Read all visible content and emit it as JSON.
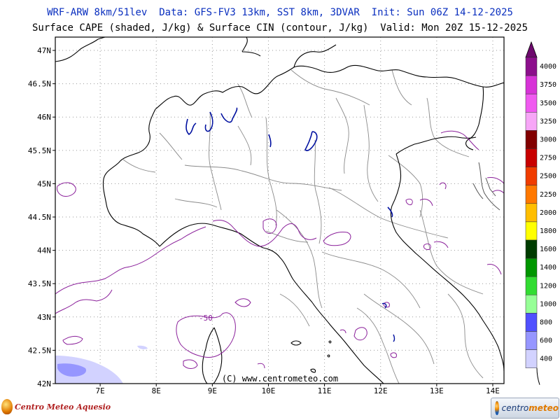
{
  "header": {
    "line1": "WRF-ARW 8km/51lev  Data: GFS-FV3 13km, SST 8km, 3DVAR  Init: Sun 06Z 14-12-2025",
    "line2": "Surface CAPE (shaded, J/kg) & Surface CIN (contour, J/kg)  Valid: Mon 20Z 15-12-2025"
  },
  "map": {
    "lat_labels": [
      "47N",
      "46.5N",
      "46N",
      "45.5N",
      "45N",
      "44.5N",
      "44N",
      "43.5N",
      "43N",
      "42.5N",
      "42N"
    ],
    "lat_values": [
      47,
      46.5,
      46,
      45.5,
      45,
      44.5,
      44,
      43.5,
      43,
      42.5,
      42
    ],
    "lon_labels": [
      "7E",
      "8E",
      "9E",
      "10E",
      "11E",
      "12E",
      "13E",
      "14E"
    ],
    "lon_values": [
      7,
      8,
      9,
      10,
      11,
      12,
      13,
      14
    ],
    "lon_range": [
      6.2,
      14.2
    ],
    "lat_range": [
      42,
      47.2
    ],
    "grid": "dotted",
    "copyright": "(C) www.centrometeo.com",
    "cin_contour_label": "-50",
    "colors": {
      "cin_contour": "#8a1f9a",
      "lakes": "#0010a0",
      "border": "#000000",
      "regions": "#8a8a8a",
      "header_line1": "#0a2fbf"
    }
  },
  "colorbar": {
    "levels": [
      "4000",
      "3750",
      "3500",
      "3250",
      "3000",
      "2750",
      "2500",
      "2250",
      "2000",
      "1800",
      "1600",
      "1400",
      "1200",
      "1000",
      "800",
      "600",
      "400"
    ],
    "colors": [
      "#8c0f8c",
      "#d733d7",
      "#f05af0",
      "#f7a6f7",
      "#820000",
      "#c80000",
      "#f03c00",
      "#ff7800",
      "#ffbe00",
      "#ffff00",
      "#003c00",
      "#009600",
      "#32dc32",
      "#96ff96",
      "#5050ff",
      "#9696ff",
      "#d2d2ff"
    ],
    "top_triangle_color": "#6e0a6e"
  },
  "logos": {
    "left": "Centro Meteo Aquesio",
    "right_brand_a": "centro",
    "right_brand_b": "meteo"
  }
}
